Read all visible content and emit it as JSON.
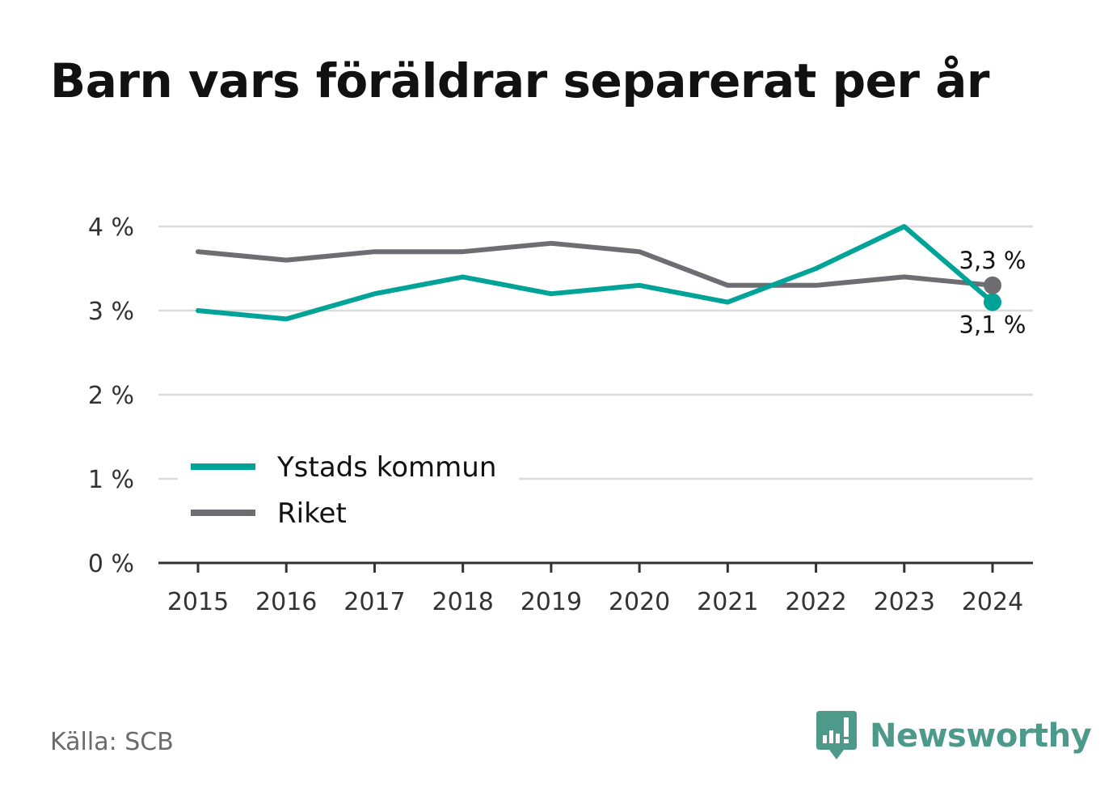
{
  "title": "Barn vars föräldrar separerat per år",
  "source": "Källa: SCB",
  "brand": {
    "name": "Newsworthy",
    "icon": "newsworthy-logo-icon",
    "color": "#4d9a8a"
  },
  "chart_data": {
    "type": "line",
    "x": [
      "2015",
      "2016",
      "2017",
      "2018",
      "2019",
      "2020",
      "2021",
      "2022",
      "2023",
      "2024"
    ],
    "ylim": [
      0,
      4
    ],
    "yticks": [
      {
        "value": 0,
        "label": "0 %"
      },
      {
        "value": 1,
        "label": "1 %"
      },
      {
        "value": 2,
        "label": "2 %"
      },
      {
        "value": 3,
        "label": "3 %"
      },
      {
        "value": 4,
        "label": "4 %"
      }
    ],
    "grid": true,
    "legend": "bottom-left",
    "series": [
      {
        "name": "Ystads kommun",
        "color": "#00a398",
        "values": [
          3.0,
          2.9,
          3.2,
          3.4,
          3.2,
          3.3,
          3.1,
          3.5,
          4.0,
          3.1
        ],
        "end_label": "3,1 %"
      },
      {
        "name": "Riket",
        "color": "#6e6d72",
        "values": [
          3.7,
          3.6,
          3.7,
          3.7,
          3.8,
          3.7,
          3.3,
          3.3,
          3.4,
          3.3
        ],
        "end_label": "3,3 %"
      }
    ]
  }
}
